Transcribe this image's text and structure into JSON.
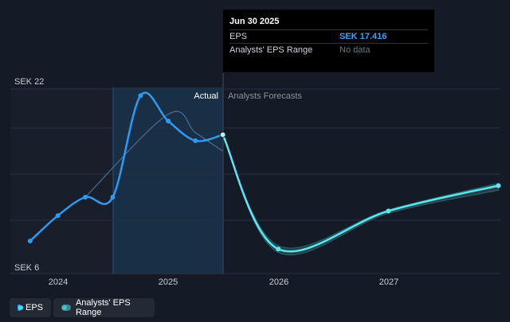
{
  "chart_data": {
    "type": "line",
    "y_axis_labels": [
      "SEK 22",
      "SEK 6"
    ],
    "ylim": [
      6,
      22
    ],
    "x_ticks": [
      "2024",
      "2025",
      "2026",
      "2027"
    ],
    "regions": {
      "actual_label": "Actual",
      "forecast_label": "Analysts Forecasts"
    },
    "series": [
      {
        "name": "EPS",
        "color": "#2f9bf0",
        "points": [
          [
            "2023-09-30",
            8.2
          ],
          [
            "2023-12-31",
            10.4
          ],
          [
            "2024-03-31",
            12.0
          ],
          [
            "2024-06-30",
            12.0
          ],
          [
            "2024-09-30",
            20.8
          ],
          [
            "2024-12-31",
            18.6
          ],
          [
            "2025-03-31",
            16.9
          ],
          [
            "2025-06-30",
            17.416
          ]
        ]
      },
      {
        "name": "EPS Forecast",
        "color": "#5ce6f0",
        "points": [
          [
            "2025-06-30",
            17.416
          ],
          [
            "2025-12-31",
            7.5
          ],
          [
            "2026-12-31",
            10.8
          ],
          [
            "2027-12-31",
            13.0
          ]
        ]
      },
      {
        "name": "Analysts' EPS Range",
        "color": "#3a8a8e",
        "upper": [
          [
            "2025-12-31",
            7.8
          ],
          [
            "2026-12-31",
            10.9
          ],
          [
            "2027-12-31",
            13.2
          ]
        ],
        "lower": [
          [
            "2025-12-31",
            7.2
          ],
          [
            "2026-12-31",
            10.6
          ],
          [
            "2027-12-31",
            12.6
          ]
        ]
      }
    ]
  },
  "tooltip": {
    "date": "Jun 30 2025",
    "rows": [
      {
        "label": "EPS",
        "value": "SEK 17.416"
      },
      {
        "label": "Analysts' EPS Range",
        "value": "No data"
      }
    ]
  },
  "legend": [
    {
      "label": "EPS",
      "color": "#2f9bf0"
    },
    {
      "label": "Analysts' EPS Range",
      "color": "#3a8a8e"
    }
  ]
}
